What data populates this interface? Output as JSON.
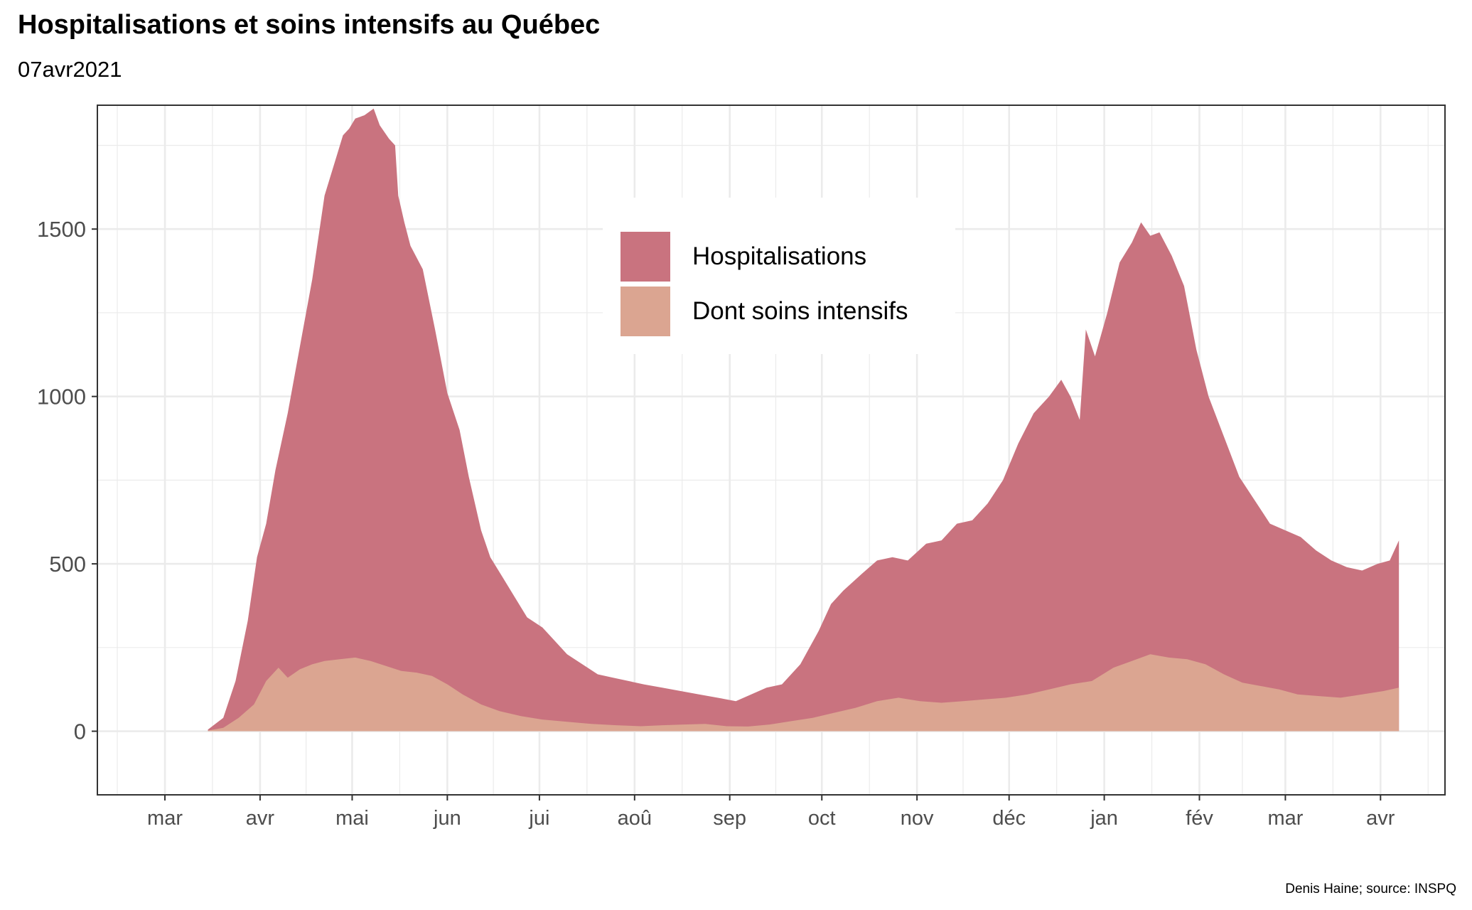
{
  "title": "Hospitalisations et soins intensifs au Québec",
  "subtitle": "07avr2021",
  "caption": "Denis Haine; source: INSPQ",
  "colors": {
    "hospitalisations": "#c9737f",
    "soins_intensifs": "#dba591",
    "grid": "#ebebeb",
    "panel_border": "#333333"
  },
  "chart_data": {
    "type": "area",
    "title": "Hospitalisations et soins intensifs au Québec",
    "subtitle": "07avr2021",
    "xlabel": "",
    "ylabel": "",
    "x_range": [
      "2020-02-08",
      "2021-04-22"
    ],
    "ylim": [
      -190,
      1870
    ],
    "y_ticks": [
      0,
      500,
      1000,
      1500
    ],
    "x_ticks": [
      {
        "date": "2020-03-01",
        "label": "mar"
      },
      {
        "date": "2020-04-01",
        "label": "avr"
      },
      {
        "date": "2020-05-01",
        "label": "mai"
      },
      {
        "date": "2020-06-01",
        "label": "jun"
      },
      {
        "date": "2020-07-01",
        "label": "jui"
      },
      {
        "date": "2020-08-01",
        "label": "aoû"
      },
      {
        "date": "2020-09-01",
        "label": "sep"
      },
      {
        "date": "2020-10-01",
        "label": "oct"
      },
      {
        "date": "2020-11-01",
        "label": "nov"
      },
      {
        "date": "2020-12-01",
        "label": "déc"
      },
      {
        "date": "2021-01-01",
        "label": "jan"
      },
      {
        "date": "2021-02-01",
        "label": "fév"
      },
      {
        "date": "2021-03-01",
        "label": "mar"
      },
      {
        "date": "2021-04-01",
        "label": "avr"
      }
    ],
    "grid": true,
    "legend_position": "top-center",
    "series": [
      {
        "name": "Hospitalisations",
        "color": "#c9737f",
        "x": [
          "2020-03-15",
          "2020-03-20",
          "2020-03-24",
          "2020-03-28",
          "2020-03-31",
          "2020-04-03",
          "2020-04-06",
          "2020-04-10",
          "2020-04-14",
          "2020-04-18",
          "2020-04-22",
          "2020-04-26",
          "2020-04-28",
          "2020-04-30",
          "2020-05-02",
          "2020-05-05",
          "2020-05-08",
          "2020-05-10",
          "2020-05-13",
          "2020-05-15",
          "2020-05-16",
          "2020-05-18",
          "2020-05-20",
          "2020-05-24",
          "2020-05-28",
          "2020-06-01",
          "2020-06-05",
          "2020-06-08",
          "2020-06-12",
          "2020-06-15",
          "2020-06-19",
          "2020-06-23",
          "2020-06-27",
          "2020-07-02",
          "2020-07-06",
          "2020-07-10",
          "2020-07-15",
          "2020-07-20",
          "2020-07-25",
          "2020-07-30",
          "2020-08-04",
          "2020-08-10",
          "2020-08-16",
          "2020-08-22",
          "2020-08-28",
          "2020-09-03",
          "2020-09-08",
          "2020-09-13",
          "2020-09-18",
          "2020-09-24",
          "2020-09-30",
          "2020-10-04",
          "2020-10-08",
          "2020-10-14",
          "2020-10-19",
          "2020-10-24",
          "2020-10-29",
          "2020-11-04",
          "2020-11-09",
          "2020-11-14",
          "2020-11-19",
          "2020-11-24",
          "2020-11-29",
          "2020-12-04",
          "2020-12-09",
          "2020-12-14",
          "2020-12-18",
          "2020-12-21",
          "2020-12-24",
          "2020-12-26",
          "2020-12-29",
          "2021-01-02",
          "2021-01-06",
          "2021-01-10",
          "2021-01-13",
          "2021-01-16",
          "2021-01-19",
          "2021-01-23",
          "2021-01-27",
          "2021-01-31",
          "2021-02-04",
          "2021-02-09",
          "2021-02-14",
          "2021-02-19",
          "2021-02-24",
          "2021-03-01",
          "2021-03-06",
          "2021-03-11",
          "2021-03-16",
          "2021-03-21",
          "2021-03-26",
          "2021-03-31",
          "2021-04-04",
          "2021-04-07"
        ],
        "values": [
          5,
          40,
          150,
          330,
          520,
          620,
          780,
          950,
          1150,
          1350,
          1600,
          1720,
          1780,
          1800,
          1830,
          1840,
          1860,
          1810,
          1770,
          1750,
          1600,
          1520,
          1450,
          1380,
          1200,
          1010,
          900,
          760,
          600,
          520,
          460,
          400,
          340,
          310,
          270,
          230,
          200,
          170,
          160,
          150,
          140,
          130,
          120,
          110,
          100,
          90,
          110,
          130,
          140,
          200,
          300,
          380,
          420,
          470,
          510,
          520,
          510,
          560,
          570,
          620,
          630,
          680,
          750,
          860,
          950,
          1000,
          1050,
          1000,
          930,
          1200,
          1120,
          1250,
          1400,
          1460,
          1520,
          1480,
          1490,
          1420,
          1330,
          1140,
          1000,
          880,
          760,
          690,
          620,
          600,
          580,
          540,
          510,
          490,
          480,
          500,
          510,
          570
        ]
      },
      {
        "name": "Dont soins intensifs",
        "color": "#dba591",
        "x": [
          "2020-03-15",
          "2020-03-20",
          "2020-03-25",
          "2020-03-30",
          "2020-04-03",
          "2020-04-07",
          "2020-04-10",
          "2020-04-14",
          "2020-04-18",
          "2020-04-22",
          "2020-04-27",
          "2020-05-02",
          "2020-05-07",
          "2020-05-12",
          "2020-05-17",
          "2020-05-22",
          "2020-05-27",
          "2020-06-01",
          "2020-06-06",
          "2020-06-12",
          "2020-06-18",
          "2020-06-25",
          "2020-07-02",
          "2020-07-10",
          "2020-07-18",
          "2020-07-26",
          "2020-08-03",
          "2020-08-10",
          "2020-08-17",
          "2020-08-24",
          "2020-08-31",
          "2020-09-07",
          "2020-09-14",
          "2020-09-21",
          "2020-09-28",
          "2020-10-05",
          "2020-10-12",
          "2020-10-19",
          "2020-10-26",
          "2020-11-02",
          "2020-11-09",
          "2020-11-16",
          "2020-11-23",
          "2020-11-30",
          "2020-12-07",
          "2020-12-14",
          "2020-12-21",
          "2020-12-28",
          "2021-01-04",
          "2021-01-10",
          "2021-01-16",
          "2021-01-22",
          "2021-01-28",
          "2021-02-03",
          "2021-02-09",
          "2021-02-15",
          "2021-02-21",
          "2021-02-27",
          "2021-03-05",
          "2021-03-12",
          "2021-03-19",
          "2021-03-26",
          "2021-04-02",
          "2021-04-07"
        ],
        "values": [
          2,
          10,
          40,
          80,
          150,
          190,
          160,
          185,
          200,
          210,
          215,
          220,
          210,
          195,
          180,
          175,
          165,
          140,
          110,
          80,
          60,
          45,
          35,
          28,
          22,
          18,
          15,
          18,
          20,
          22,
          15,
          14,
          20,
          30,
          40,
          55,
          70,
          90,
          100,
          90,
          85,
          90,
          95,
          100,
          110,
          125,
          140,
          150,
          190,
          210,
          230,
          220,
          215,
          200,
          170,
          145,
          135,
          125,
          110,
          105,
          100,
          110,
          120,
          130
        ]
      }
    ]
  }
}
